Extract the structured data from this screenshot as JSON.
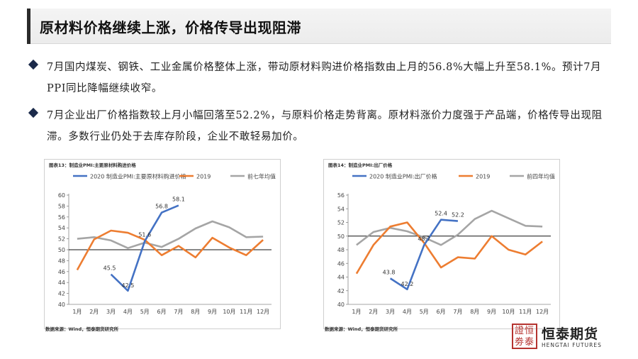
{
  "title": "原材料价格继续上涨，价格传导出现阻滞",
  "bullets": [
    "7月国内煤炭、钢铁、工业金属价格整体上涨，带动原材料购进价格指数由上月的56.8%大幅上升至58.1%。预计7月PPI同比降幅继续收窄。",
    "7月企业出厂价格指数较上月小幅回落至52.2%，与原料价格走势背离。原材料涨价力度强于产品端，价格传导出现阻滞。多数行业仍处于去库存阶段，企业不敢轻易加价。"
  ],
  "chart_data": [
    {
      "type": "line",
      "caption": "图表13：制造业PMI:主要原材料购进价格",
      "source": "数据来源：Wind，恒泰期货研究所",
      "categories": [
        "1月",
        "2月",
        "3月",
        "4月",
        "5月",
        "6月",
        "7月",
        "8月",
        "9月",
        "10月",
        "11月",
        "12月"
      ],
      "ylim": [
        40,
        60
      ],
      "yticks": [
        40,
        42,
        44,
        46,
        48,
        50,
        52,
        54,
        56,
        58,
        60
      ],
      "reference_line": 50,
      "series": [
        {
          "name": "2020 制造业PMI:主要原材料购进价格",
          "color": "#4472c4",
          "values": [
            null,
            null,
            45.5,
            42.5,
            51.6,
            56.8,
            58.1,
            null,
            null,
            null,
            null,
            null
          ]
        },
        {
          "name": "2019",
          "color": "#ed7d31",
          "values": [
            46.3,
            51.9,
            53.5,
            53.1,
            51.8,
            49.0,
            50.7,
            48.6,
            52.2,
            50.4,
            49.0,
            51.8
          ]
        },
        {
          "name": "前七年均值",
          "color": "#a5a5a5",
          "values": [
            52.0,
            52.3,
            51.7,
            50.3,
            51.3,
            50.5,
            52.0,
            53.9,
            55.2,
            54.1,
            52.3,
            52.4
          ]
        }
      ],
      "data_labels": [
        {
          "series": 0,
          "index": 2,
          "text": "45.5"
        },
        {
          "series": 0,
          "index": 3,
          "text": "42.5"
        },
        {
          "series": 0,
          "index": 4,
          "text": "51.6"
        },
        {
          "series": 0,
          "index": 5,
          "text": "56.8"
        },
        {
          "series": 0,
          "index": 6,
          "text": "58.1"
        }
      ]
    },
    {
      "type": "line",
      "caption": "图表14：制造业PMI:出厂价格",
      "source": "数据来源：Wind，恒泰期货研究所",
      "categories": [
        "1月",
        "2月",
        "3月",
        "4月",
        "5月",
        "6月",
        "7月",
        "8月",
        "9月",
        "10月",
        "11月",
        "12月"
      ],
      "ylim": [
        40,
        56
      ],
      "yticks": [
        40,
        42,
        44,
        46,
        48,
        50,
        52,
        54,
        56
      ],
      "reference_line": 50,
      "series": [
        {
          "name": "2020 制造业PMI:出厂价格",
          "color": "#4472c4",
          "values": [
            null,
            null,
            43.8,
            42.2,
            48.7,
            52.4,
            52.2,
            null,
            null,
            null,
            null,
            null
          ]
        },
        {
          "name": "2019",
          "color": "#ed7d31",
          "values": [
            44.5,
            48.7,
            51.4,
            52.0,
            49.0,
            45.4,
            46.9,
            46.7,
            50.0,
            48.0,
            47.3,
            49.2
          ]
        },
        {
          "name": "前四年均值",
          "color": "#a5a5a5",
          "values": [
            48.7,
            50.6,
            51.2,
            50.7,
            49.8,
            48.7,
            50.2,
            52.5,
            53.7,
            52.6,
            51.5,
            51.4
          ]
        }
      ],
      "data_labels": [
        {
          "series": 0,
          "index": 2,
          "text": "43.8"
        },
        {
          "series": 0,
          "index": 3,
          "text": "42.2"
        },
        {
          "series": 0,
          "index": 4,
          "text": "48.7"
        },
        {
          "series": 0,
          "index": 5,
          "text": "52.4"
        },
        {
          "series": 0,
          "index": 6,
          "text": "52.2"
        }
      ]
    }
  ],
  "logo": {
    "seal_text": "證恒\n劵泰",
    "name_cn": "恒泰期货",
    "name_en": "HENGTAI FUTURES",
    "accent_color": "#b5332f"
  }
}
